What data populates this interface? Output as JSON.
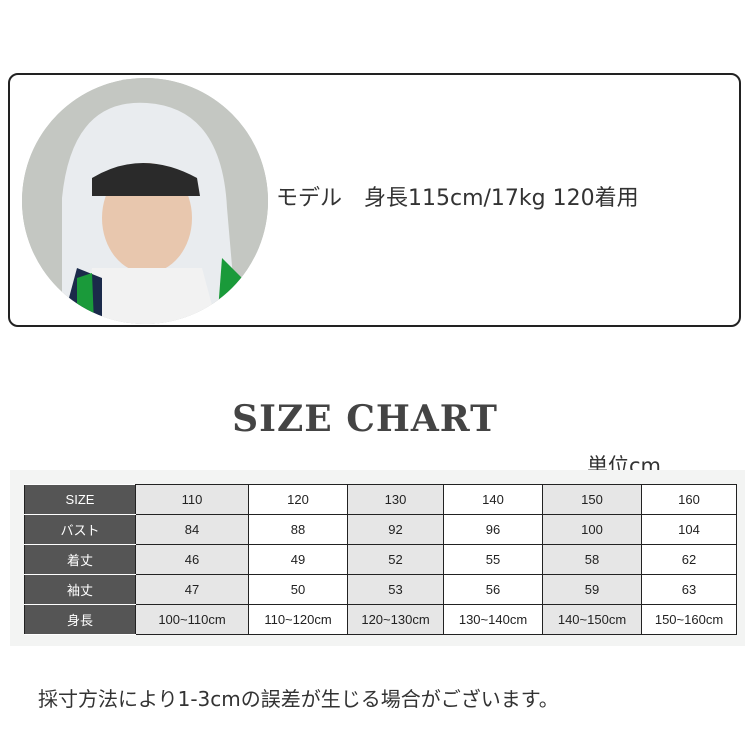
{
  "model_text": "モデル　身長115cm/17kg 120着用",
  "title": "SIZE CHART",
  "unit": "単位cm",
  "table": {
    "rows": [
      {
        "label": "SIZE",
        "values": [
          "110",
          "120",
          "130",
          "140",
          "150",
          "160"
        ]
      },
      {
        "label": "バスト",
        "values": [
          "84",
          "88",
          "92",
          "96",
          "100",
          "104"
        ]
      },
      {
        "label": "着丈",
        "values": [
          "46",
          "49",
          "52",
          "55",
          "58",
          "62"
        ]
      },
      {
        "label": "袖丈",
        "values": [
          "47",
          "50",
          "53",
          "56",
          "59",
          "63"
        ]
      },
      {
        "label": "身長",
        "values": [
          "100~110cm",
          "110~120cm",
          "120~130cm",
          "130~140cm",
          "140~150cm",
          "150~160cm"
        ]
      }
    ]
  },
  "note": "採寸方法により1-3cmの誤差が生じる場合がございます。"
}
